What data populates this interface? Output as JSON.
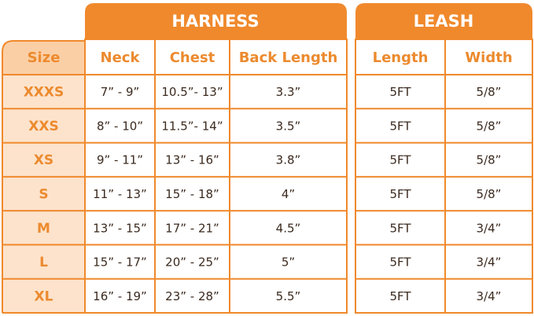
{
  "header": {
    "harness": "HARNESS",
    "leash": "LEASH"
  },
  "columns": [
    "Size",
    "Neck",
    "Chest",
    "Back Length",
    "Length",
    "Width"
  ],
  "rows": [
    [
      "XXXS",
      "7” - 9”",
      "10.5”- 13”",
      "3.3”",
      "5FT",
      "5/8”"
    ],
    [
      "XXS",
      "8” - 10”",
      "11.5”- 14”",
      "3.5”",
      "5FT",
      "5/8”"
    ],
    [
      "XS",
      "9” - 11”",
      "13” - 16”",
      "3.8”",
      "5FT",
      "5/8”"
    ],
    [
      "S",
      "11” - 13”",
      "15” - 18”",
      "4”",
      "5FT",
      "5/8”"
    ],
    [
      "M",
      "13” - 15”",
      "17” - 21”",
      "4.5”",
      "5FT",
      "3/4”"
    ],
    [
      "L",
      "15” - 17”",
      "20” - 25”",
      "5”",
      "5FT",
      "3/4”"
    ],
    [
      "XL",
      "16” - 19”",
      "23” - 28”",
      "5.5”",
      "5FT",
      "3/4”"
    ]
  ]
}
